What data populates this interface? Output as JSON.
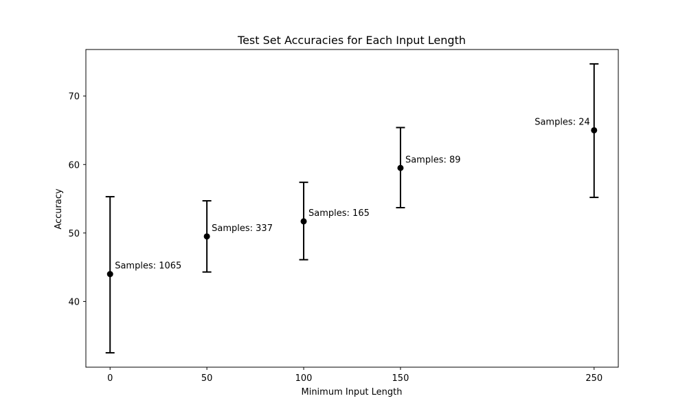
{
  "chart_data": {
    "type": "scatter",
    "title": "Test Set Accuracies for Each Input Length",
    "xlabel": "Minimum Input Length",
    "ylabel": "Accuracy",
    "xlim": [
      -12.5,
      262.5
    ],
    "ylim": [
      30.4,
      76.8
    ],
    "xticks": [
      0,
      50,
      100,
      150,
      250
    ],
    "yticks": [
      40,
      50,
      60,
      70
    ],
    "grid": false,
    "marker_color": "#000000",
    "points": [
      {
        "x": 0,
        "y": 44.0,
        "err_low": 32.5,
        "err_high": 55.3,
        "label": "Samples: 1065",
        "label_side": "right"
      },
      {
        "x": 50,
        "y": 49.5,
        "err_low": 44.3,
        "err_high": 54.7,
        "label": "Samples: 337",
        "label_side": "right"
      },
      {
        "x": 100,
        "y": 51.7,
        "err_low": 46.1,
        "err_high": 57.4,
        "label": "Samples: 165",
        "label_side": "right"
      },
      {
        "x": 150,
        "y": 59.5,
        "err_low": 53.7,
        "err_high": 65.4,
        "label": "Samples: 89",
        "label_side": "right"
      },
      {
        "x": 250,
        "y": 65.0,
        "err_low": 55.2,
        "err_high": 74.7,
        "label": "Samples: 24",
        "label_side": "left"
      }
    ]
  }
}
